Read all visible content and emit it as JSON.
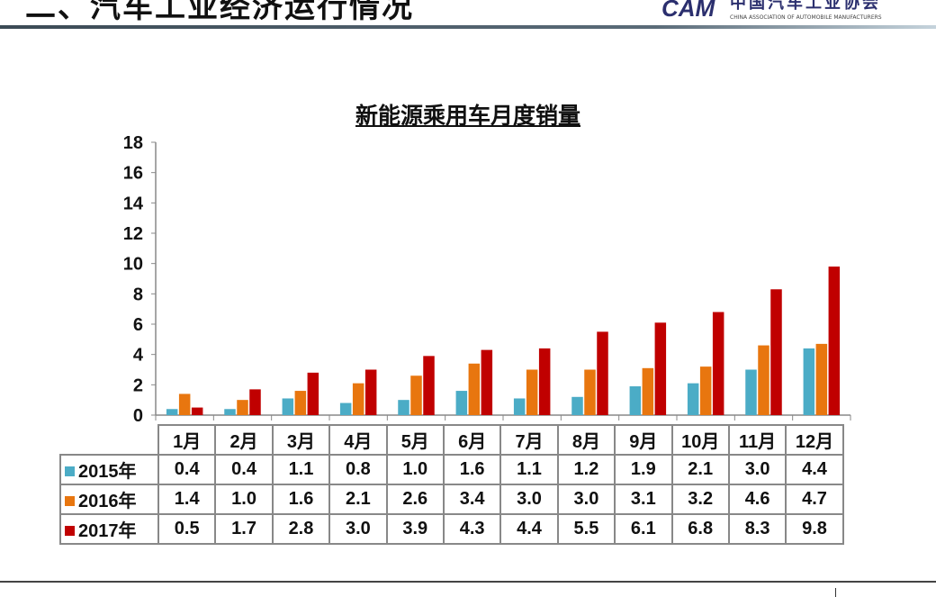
{
  "header": {
    "title": "二、汽车工业经济运行情况",
    "logo_cn": "中国汽车工业协会",
    "logo_en": "CHINA ASSOCIATION OF AUTOMOBILE MANUFACTURERS",
    "logo_mark": "CAM"
  },
  "chart_data": {
    "type": "bar",
    "title": "新能源乘用车月度销量",
    "categories": [
      "1月",
      "2月",
      "3月",
      "4月",
      "5月",
      "6月",
      "7月",
      "8月",
      "9月",
      "10月",
      "11月",
      "12月"
    ],
    "ylim": [
      0,
      18
    ],
    "yticks": [
      0,
      2,
      4,
      6,
      8,
      10,
      12,
      14,
      16,
      18
    ],
    "grid": false,
    "legend": "data-table",
    "series": [
      {
        "name": "2015年",
        "color": "#4BACC6",
        "values": [
          0.4,
          0.4,
          1.1,
          0.8,
          1.0,
          1.6,
          1.1,
          1.2,
          1.9,
          2.1,
          3.0,
          4.4
        ]
      },
      {
        "name": "2016年",
        "color": "#E8760F",
        "values": [
          1.4,
          1.0,
          1.6,
          2.1,
          2.6,
          3.4,
          3.0,
          3.0,
          3.1,
          3.2,
          4.6,
          4.7
        ]
      },
      {
        "name": "2017年",
        "color": "#C00000",
        "values": [
          0.5,
          1.7,
          2.8,
          3.0,
          3.9,
          4.3,
          4.4,
          5.5,
          6.1,
          6.8,
          8.3,
          9.8
        ]
      }
    ]
  }
}
